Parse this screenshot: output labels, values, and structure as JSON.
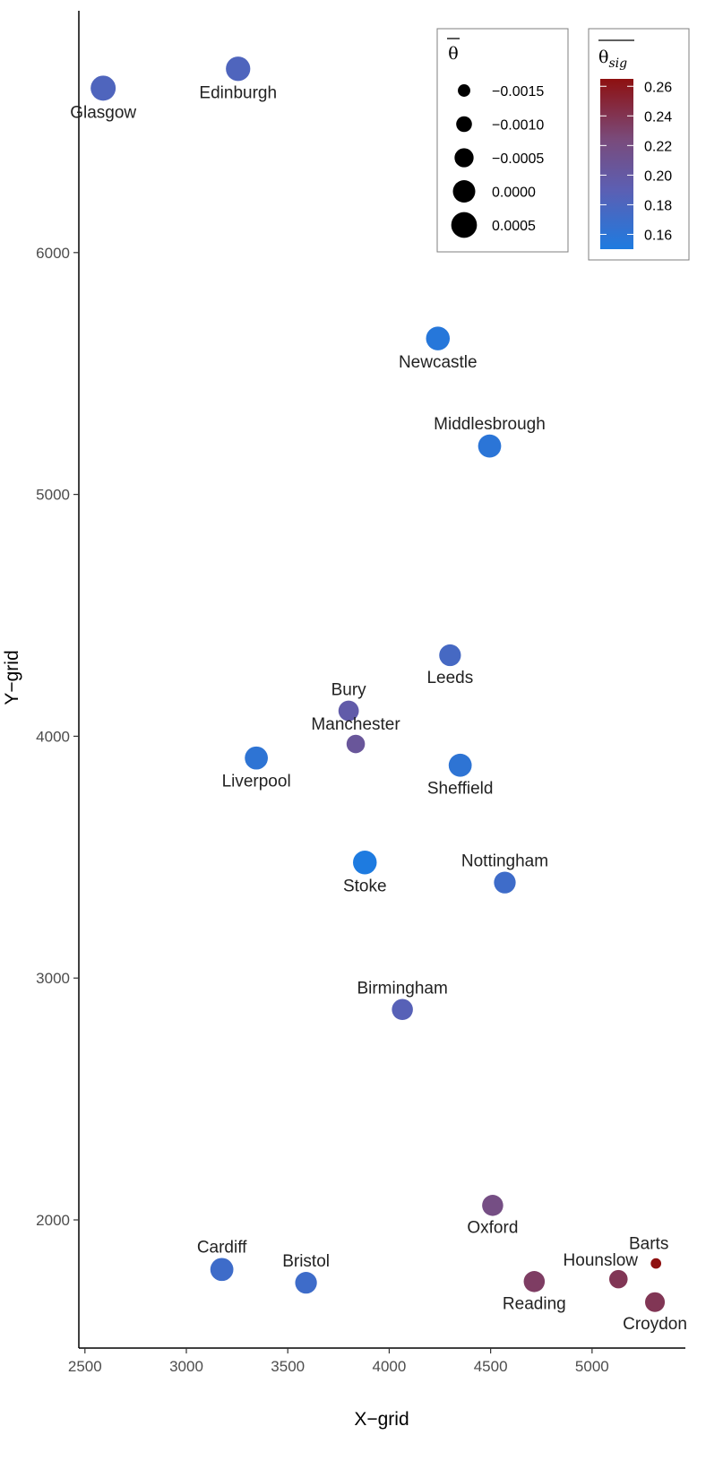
{
  "chart_data": {
    "type": "scatter",
    "xlabel": "X−grid",
    "ylabel": "Y−grid",
    "xlim": [
      2470,
      5460
    ],
    "ylim": [
      1470,
      7000
    ],
    "xticks": [
      2500,
      3000,
      3500,
      4000,
      4500,
      5000
    ],
    "yticks": [
      2000,
      3000,
      4000,
      5000,
      6000
    ],
    "grid": false,
    "size_legend": {
      "title": "θ",
      "placement": "top-right",
      "entries": [
        {
          "label": "−0.0015",
          "value": -0.0015
        },
        {
          "label": "−0.0010",
          "value": -0.001
        },
        {
          "label": "−0.0005",
          "value": -0.0005
        },
        {
          "label": "0.0000",
          "value": 0.0
        },
        {
          "label": "0.0005",
          "value": 0.0005
        }
      ]
    },
    "color_legend": {
      "title_main": "θ",
      "title_sub": "sig",
      "placement": "top-right",
      "range": [
        0.15,
        0.265
      ],
      "ticks": [
        0.16,
        0.18,
        0.2,
        0.22,
        0.24,
        0.26
      ],
      "tick_labels": [
        "0.16",
        "0.18",
        "0.20",
        "0.22",
        "0.24",
        "0.26"
      ],
      "colors": [
        "#1e7be0",
        "#5c5fb3",
        "#7a4a7a",
        "#8e1010"
      ]
    },
    "points": [
      {
        "name": "Glasgow",
        "x": 2590,
        "y": 6680,
        "theta": 0.0004,
        "theta_sig": 0.18,
        "label_pos": "below"
      },
      {
        "name": "Edinburgh",
        "x": 3255,
        "y": 6760,
        "theta": 0.0003,
        "theta_sig": 0.18,
        "label_pos": "below"
      },
      {
        "name": "Newcastle",
        "x": 4240,
        "y": 5645,
        "theta": 0.0002,
        "theta_sig": 0.155,
        "label_pos": "below"
      },
      {
        "name": "Middlesbrough",
        "x": 4495,
        "y": 5200,
        "theta": 0.0001,
        "theta_sig": 0.158,
        "label_pos": "above"
      },
      {
        "name": "Leeds",
        "x": 4300,
        "y": 4335,
        "theta": -0.0001,
        "theta_sig": 0.175,
        "label_pos": "below"
      },
      {
        "name": "Bury",
        "x": 3800,
        "y": 4105,
        "theta": -0.0003,
        "theta_sig": 0.195,
        "label_pos": "above"
      },
      {
        "name": "Manchester",
        "x": 3835,
        "y": 3968,
        "theta": -0.0006,
        "theta_sig": 0.205,
        "label_pos": "above"
      },
      {
        "name": "Liverpool",
        "x": 3345,
        "y": 3910,
        "theta": 0.0001,
        "theta_sig": 0.16,
        "label_pos": "below"
      },
      {
        "name": "Sheffield",
        "x": 4350,
        "y": 3880,
        "theta": 0.0001,
        "theta_sig": 0.16,
        "label_pos": "below"
      },
      {
        "name": "Stoke",
        "x": 3880,
        "y": 3478,
        "theta": 0.0002,
        "theta_sig": 0.15,
        "label_pos": "below"
      },
      {
        "name": "Nottingham",
        "x": 4570,
        "y": 3395,
        "theta": -0.0001,
        "theta_sig": 0.17,
        "label_pos": "above"
      },
      {
        "name": "Birmingham",
        "x": 4065,
        "y": 2870,
        "theta": -0.0002,
        "theta_sig": 0.185,
        "label_pos": "above"
      },
      {
        "name": "Oxford",
        "x": 4510,
        "y": 2060,
        "theta": -0.0002,
        "theta_sig": 0.22,
        "label_pos": "below"
      },
      {
        "name": "Cardiff",
        "x": 3175,
        "y": 1795,
        "theta": 0.0001,
        "theta_sig": 0.17,
        "label_pos": "above"
      },
      {
        "name": "Bristol",
        "x": 3590,
        "y": 1740,
        "theta": -0.0001,
        "theta_sig": 0.17,
        "label_pos": "above"
      },
      {
        "name": "Hounslow",
        "x": 5130,
        "y": 1755,
        "theta": -0.0006,
        "theta_sig": 0.24,
        "label_pos": "above-left"
      },
      {
        "name": "Reading",
        "x": 4715,
        "y": 1745,
        "theta": -0.0002,
        "theta_sig": 0.235,
        "label_pos": "below"
      },
      {
        "name": "Barts",
        "x": 5315,
        "y": 1820,
        "theta": -0.0018,
        "theta_sig": 0.265,
        "label_pos": "above-right"
      },
      {
        "name": "Croydon",
        "x": 5310,
        "y": 1660,
        "theta": -0.0004,
        "theta_sig": 0.24,
        "label_pos": "below"
      }
    ]
  }
}
